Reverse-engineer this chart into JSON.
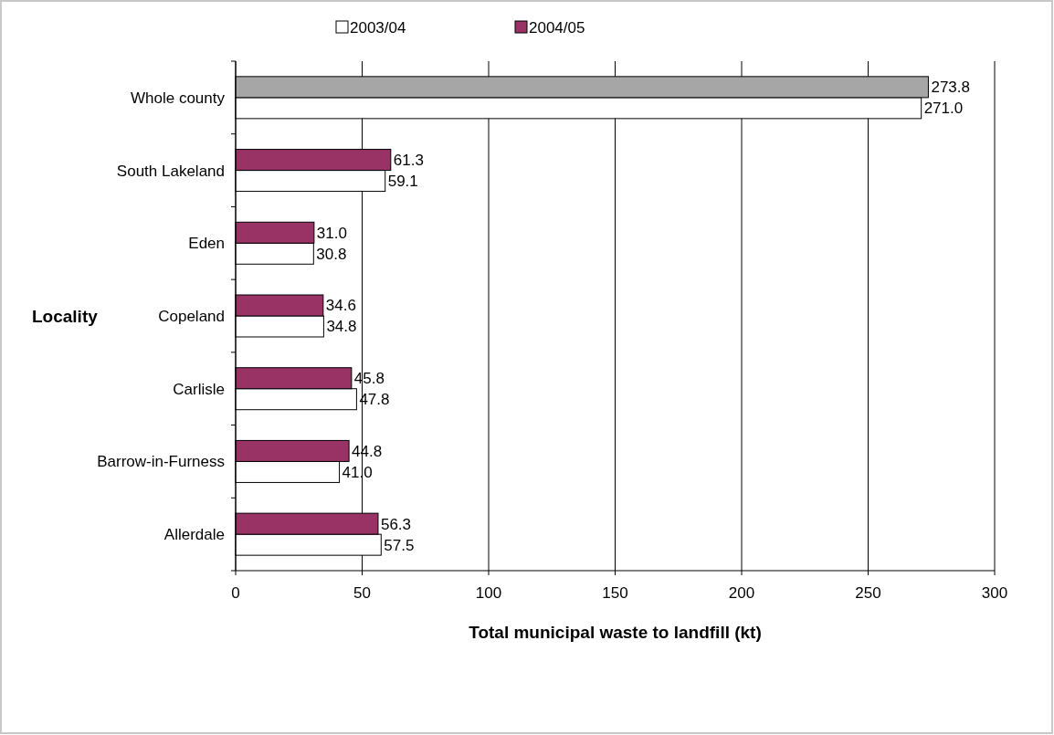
{
  "chart_data": {
    "type": "bar",
    "orientation": "horizontal",
    "xlabel": "Total municipal waste to landfill (kt)",
    "ylabel": "Locality",
    "categories": [
      "Whole county",
      "South Lakeland",
      "Eden",
      "Copeland",
      "Carlisle",
      "Barrow-in-Furness",
      "Allerdale"
    ],
    "series": [
      {
        "name": "2003/04",
        "color": "#ffffff",
        "values": [
          271.0,
          59.1,
          30.8,
          34.8,
          47.8,
          41.0,
          57.5
        ],
        "value_labels": [
          "271.0",
          "59.1",
          "30.8",
          "34.8",
          "47.8",
          "41.0",
          "57.5"
        ]
      },
      {
        "name": "2004/05",
        "color": "#993366",
        "colors": [
          "#a6a6a6",
          "#993366",
          "#993366",
          "#993366",
          "#993366",
          "#993366",
          "#993366"
        ],
        "values": [
          273.8,
          61.3,
          31.0,
          34.6,
          45.8,
          44.8,
          56.3
        ],
        "value_labels": [
          "273.8",
          "61.3",
          "31.0",
          "34.6",
          "45.8",
          "44.8",
          "56.3"
        ]
      }
    ],
    "xlim": [
      0,
      300
    ],
    "xticks": [
      0,
      50,
      100,
      150,
      200,
      250,
      300
    ],
    "grid": "x",
    "legend": "top"
  }
}
